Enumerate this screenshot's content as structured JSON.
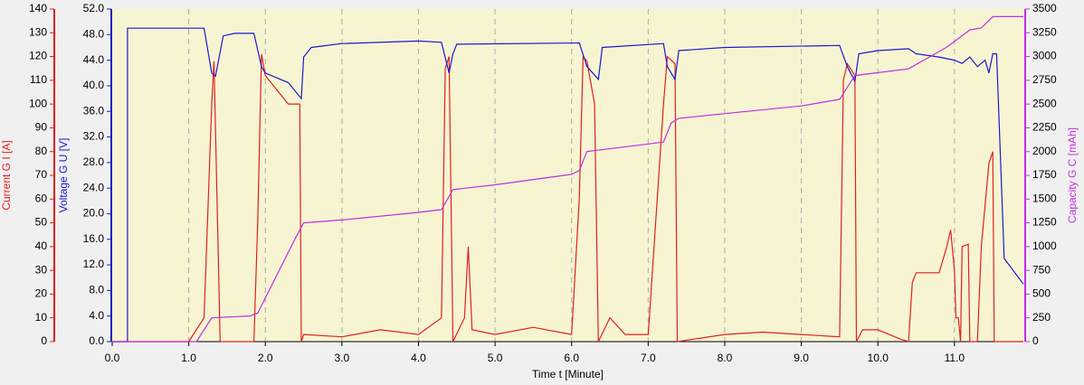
{
  "chart_data": {
    "type": "line",
    "x_label": "Time  t  [Minute]",
    "y_label": "Current G  I  [A]",
    "y2_label": "Voltage G  U  [V]",
    "y3_label": "Capacity G  C  [mAh]",
    "xlim": [
      0,
      11.9
    ],
    "xticks": [
      {
        "value": 0,
        "label": "0.0"
      },
      {
        "value": 1,
        "label": "1.0"
      },
      {
        "value": 2,
        "label": "2.0"
      },
      {
        "value": 3,
        "label": "3.0"
      },
      {
        "value": 4,
        "label": "4.0"
      },
      {
        "value": 5,
        "label": "5.0"
      },
      {
        "value": 6,
        "label": "6.0"
      },
      {
        "value": 7,
        "label": "7.0"
      },
      {
        "value": 8,
        "label": "8.0"
      },
      {
        "value": 9,
        "label": "9.0"
      },
      {
        "value": 10,
        "label": "10.0"
      },
      {
        "value": 11,
        "label": "11.0"
      }
    ],
    "ylim": [
      0,
      140
    ],
    "yticks": [
      0,
      10,
      20,
      30,
      40,
      50,
      60,
      70,
      80,
      90,
      100,
      110,
      120,
      130,
      140
    ],
    "y2lim": [
      0,
      52
    ],
    "y2ticks": [
      {
        "value": 0,
        "label": "0.0"
      },
      {
        "value": 4,
        "label": "4.0"
      },
      {
        "value": 8,
        "label": "8.0"
      },
      {
        "value": 12,
        "label": "12.0"
      },
      {
        "value": 16,
        "label": "16.0"
      },
      {
        "value": 20,
        "label": "20.0"
      },
      {
        "value": 24,
        "label": "24.0"
      },
      {
        "value": 28,
        "label": "28.0"
      },
      {
        "value": 32,
        "label": "32.0"
      },
      {
        "value": 36,
        "label": "36.0"
      },
      {
        "value": 40,
        "label": "40.0"
      },
      {
        "value": 44,
        "label": "44.0"
      },
      {
        "value": 48,
        "label": "48.0"
      },
      {
        "value": 52,
        "label": "52.0"
      }
    ],
    "y3lim": [
      0,
      3500
    ],
    "y3ticks": [
      0,
      250,
      500,
      750,
      1000,
      1250,
      1500,
      1750,
      2000,
      2250,
      2500,
      2750,
      3000,
      3250,
      3500
    ],
    "grid": true,
    "series": [
      {
        "name": "Current",
        "axis": "y",
        "color": "#e02020",
        "x": [
          0,
          1.0,
          1.2,
          1.3,
          1.33,
          1.41,
          1.5,
          1.85,
          1.9,
          1.95,
          2.0,
          2.3,
          2.45,
          2.47,
          2.5,
          3.0,
          3.5,
          4.0,
          4.3,
          4.35,
          4.4,
          4.45,
          4.6,
          4.65,
          4.7,
          5.0,
          5.5,
          6.0,
          6.1,
          6.15,
          6.2,
          6.3,
          6.35,
          6.5,
          6.7,
          7.0,
          7.2,
          7.25,
          7.35,
          7.38,
          8.0,
          8.5,
          9.0,
          9.5,
          9.55,
          9.6,
          9.7,
          9.72,
          9.8,
          10.0,
          10.3,
          10.4,
          10.45,
          10.5,
          10.8,
          10.9,
          10.95,
          11.0,
          11.02,
          11.05,
          11.08,
          11.1,
          11.18,
          11.2,
          11.3,
          11.35,
          11.45,
          11.5,
          11.52,
          11.9
        ],
        "values": [
          0,
          0,
          10,
          100,
          118,
          0,
          0,
          0,
          50,
          121,
          112,
          100,
          100,
          0,
          3,
          2,
          5,
          3,
          10,
          115,
          120,
          0,
          10,
          40,
          5,
          3,
          6,
          3,
          60,
          120,
          118,
          100,
          0,
          10,
          3,
          3,
          100,
          120,
          117,
          0,
          3,
          4,
          3,
          2,
          110,
          117,
          112,
          0,
          5,
          5,
          1,
          0,
          25,
          29,
          29,
          40,
          47,
          30,
          10,
          10,
          0,
          40,
          41,
          0,
          0,
          40,
          75,
          80,
          0,
          0
        ]
      },
      {
        "name": "Voltage",
        "axis": "y2",
        "color": "#1a1acc",
        "x": [
          0,
          0.2,
          0.2,
          1.2,
          1.3,
          1.35,
          1.45,
          1.6,
          1.85,
          1.95,
          2.0,
          2.3,
          2.47,
          2.5,
          2.6,
          3.0,
          4.0,
          4.3,
          4.4,
          4.45,
          4.5,
          6.1,
          6.2,
          6.35,
          6.4,
          7.2,
          7.25,
          7.35,
          7.4,
          8.0,
          9.5,
          9.6,
          9.7,
          9.75,
          10.0,
          10.4,
          10.5,
          10.8,
          11.0,
          11.1,
          11.2,
          11.3,
          11.4,
          11.45,
          11.5,
          11.55,
          11.65,
          11.9
        ],
        "values": [
          0,
          0,
          49,
          49,
          42,
          41.5,
          47.8,
          48.2,
          48.2,
          43,
          42,
          40.5,
          38,
          44.5,
          46,
          46.6,
          47,
          46.8,
          42,
          45,
          46.5,
          46.7,
          43,
          41,
          46,
          46.6,
          43,
          41,
          45.5,
          46,
          46.3,
          43,
          40.7,
          45,
          45.5,
          45.8,
          45,
          44.5,
          44,
          43.5,
          44.5,
          43,
          44,
          42,
          45,
          45,
          13,
          9
        ]
      },
      {
        "name": "Capacity",
        "axis": "y3",
        "color": "#c030e0",
        "x": [
          0,
          1.1,
          1.3,
          1.8,
          1.9,
          2.4,
          2.5,
          3.0,
          4.0,
          4.3,
          4.45,
          5.0,
          6.0,
          6.1,
          6.2,
          7.0,
          7.2,
          7.3,
          7.4,
          8.0,
          9.0,
          9.5,
          9.7,
          10.0,
          10.4,
          10.9,
          11.2,
          11.35,
          11.5,
          11.9
        ],
        "values": [
          0,
          0,
          250,
          270,
          300,
          1100,
          1250,
          1280,
          1360,
          1390,
          1600,
          1650,
          1760,
          1800,
          2000,
          2080,
          2100,
          2300,
          2350,
          2400,
          2480,
          2550,
          2800,
          2830,
          2870,
          3100,
          3280,
          3300,
          3420,
          3420
        ]
      }
    ]
  }
}
